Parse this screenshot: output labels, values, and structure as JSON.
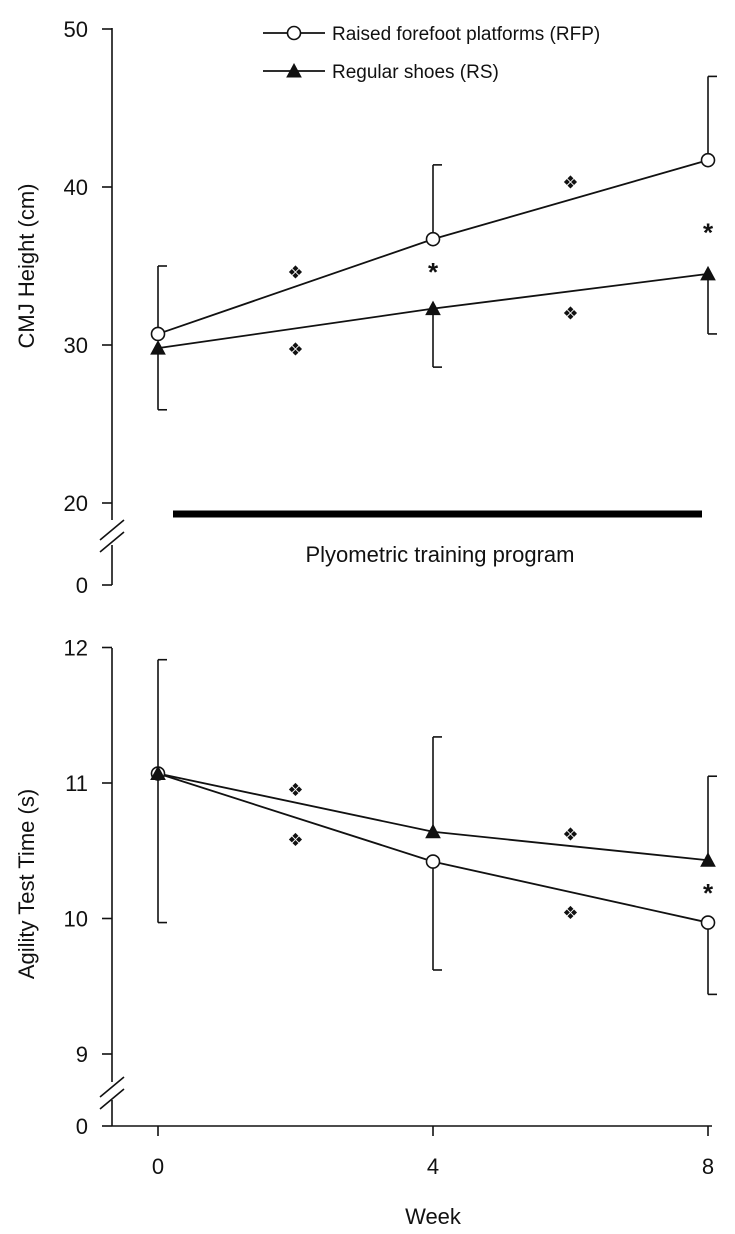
{
  "chart_data": [
    {
      "type": "line",
      "ylabel": "CMJ Height (cm)",
      "xlabel": "",
      "yticks": [
        20,
        30,
        40,
        50
      ],
      "yaxis_break_label": "0",
      "ylim": [
        20,
        50
      ],
      "x": [
        0,
        4,
        8
      ],
      "series": [
        {
          "name": "Raised forefoot platforms (RFP)",
          "marker": "open-circle",
          "values": [
            30.7,
            36.7,
            41.7
          ],
          "error_upper": [
            35.0,
            41.4,
            47.0
          ],
          "error_lower": [
            null,
            null,
            null
          ]
        },
        {
          "name": "Regular shoes (RS)",
          "marker": "filled-triangle",
          "values": [
            29.8,
            32.3,
            34.5
          ],
          "error_upper": [
            null,
            null,
            null
          ],
          "error_lower": [
            25.9,
            28.6,
            30.7
          ]
        }
      ],
      "legend": [
        {
          "label": "Raised forefoot platforms (RFP)",
          "marker": "open-circle"
        },
        {
          "label": "Regular shoes (RS)",
          "marker": "filled-triangle"
        }
      ],
      "training_band": {
        "label": "Plyometric training program",
        "x_range": [
          0.3,
          8
        ]
      },
      "annotations": [
        {
          "text": "❖",
          "x": 2,
          "y": 34.6
        },
        {
          "text": "❖",
          "x": 2,
          "y": 29.7
        },
        {
          "text": "*",
          "x": 4,
          "y": 34.8
        },
        {
          "text": "❖",
          "x": 6,
          "y": 40.3
        },
        {
          "text": "❖",
          "x": 6,
          "y": 32.0
        },
        {
          "text": "*",
          "x": 8,
          "y": 37.3
        }
      ]
    },
    {
      "type": "line",
      "ylabel": "Agility Test Time (s)",
      "xlabel": "Week",
      "xticks": [
        0,
        4,
        8
      ],
      "yticks": [
        9,
        10,
        11,
        12
      ],
      "yaxis_break_label": "0",
      "ylim": [
        9,
        12
      ],
      "x": [
        0,
        4,
        8
      ],
      "series": [
        {
          "name": "Raised forefoot platforms (RFP)",
          "marker": "open-circle",
          "values": [
            11.07,
            10.42,
            9.97
          ],
          "error_upper": [
            null,
            null,
            null
          ],
          "error_lower": [
            9.97,
            9.62,
            9.44
          ]
        },
        {
          "name": "Regular shoes (RS)",
          "marker": "filled-triangle",
          "values": [
            11.07,
            10.64,
            10.43
          ],
          "error_upper": [
            11.91,
            11.34,
            11.05
          ],
          "error_lower": [
            null,
            null,
            null
          ]
        }
      ],
      "annotations": [
        {
          "text": "❖",
          "x": 2,
          "y": 10.95
        },
        {
          "text": "❖",
          "x": 2,
          "y": 10.58
        },
        {
          "text": "❖",
          "x": 6,
          "y": 10.62
        },
        {
          "text": "❖",
          "x": 6,
          "y": 10.04
        },
        {
          "text": "*",
          "x": 8,
          "y": 10.21
        }
      ]
    }
  ]
}
